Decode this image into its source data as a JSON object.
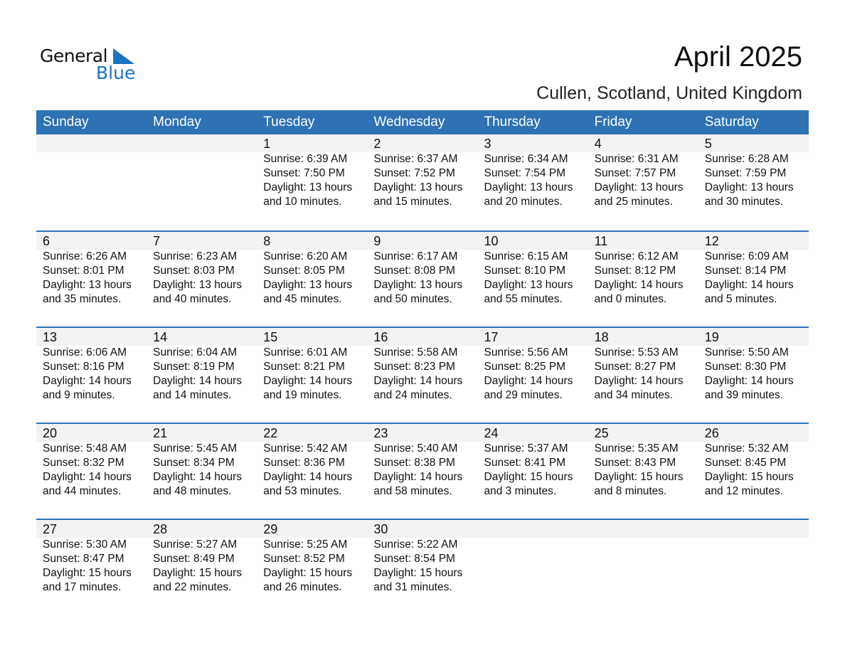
{
  "logo": {
    "word1": "General",
    "word2": "Blue"
  },
  "header": {
    "title": "April 2025",
    "subtitle": "Cullen, Scotland, United Kingdom"
  },
  "colors": {
    "accent": "#2e72b4",
    "logo_blue": "#1a73c1",
    "day_row": "#f2f2f2"
  },
  "weekdays": [
    "Sunday",
    "Monday",
    "Tuesday",
    "Wednesday",
    "Thursday",
    "Friday",
    "Saturday"
  ],
  "weeks": [
    [
      null,
      null,
      {
        "day": "1",
        "sunrise": "Sunrise: 6:39 AM",
        "sunset": "Sunset: 7:50 PM",
        "daylight1": "Daylight: 13 hours",
        "daylight2": "and 10 minutes."
      },
      {
        "day": "2",
        "sunrise": "Sunrise: 6:37 AM",
        "sunset": "Sunset: 7:52 PM",
        "daylight1": "Daylight: 13 hours",
        "daylight2": "and 15 minutes."
      },
      {
        "day": "3",
        "sunrise": "Sunrise: 6:34 AM",
        "sunset": "Sunset: 7:54 PM",
        "daylight1": "Daylight: 13 hours",
        "daylight2": "and 20 minutes."
      },
      {
        "day": "4",
        "sunrise": "Sunrise: 6:31 AM",
        "sunset": "Sunset: 7:57 PM",
        "daylight1": "Daylight: 13 hours",
        "daylight2": "and 25 minutes."
      },
      {
        "day": "5",
        "sunrise": "Sunrise: 6:28 AM",
        "sunset": "Sunset: 7:59 PM",
        "daylight1": "Daylight: 13 hours",
        "daylight2": "and 30 minutes."
      }
    ],
    [
      {
        "day": "6",
        "sunrise": "Sunrise: 6:26 AM",
        "sunset": "Sunset: 8:01 PM",
        "daylight1": "Daylight: 13 hours",
        "daylight2": "and 35 minutes."
      },
      {
        "day": "7",
        "sunrise": "Sunrise: 6:23 AM",
        "sunset": "Sunset: 8:03 PM",
        "daylight1": "Daylight: 13 hours",
        "daylight2": "and 40 minutes."
      },
      {
        "day": "8",
        "sunrise": "Sunrise: 6:20 AM",
        "sunset": "Sunset: 8:05 PM",
        "daylight1": "Daylight: 13 hours",
        "daylight2": "and 45 minutes."
      },
      {
        "day": "9",
        "sunrise": "Sunrise: 6:17 AM",
        "sunset": "Sunset: 8:08 PM",
        "daylight1": "Daylight: 13 hours",
        "daylight2": "and 50 minutes."
      },
      {
        "day": "10",
        "sunrise": "Sunrise: 6:15 AM",
        "sunset": "Sunset: 8:10 PM",
        "daylight1": "Daylight: 13 hours",
        "daylight2": "and 55 minutes."
      },
      {
        "day": "11",
        "sunrise": "Sunrise: 6:12 AM",
        "sunset": "Sunset: 8:12 PM",
        "daylight1": "Daylight: 14 hours",
        "daylight2": "and 0 minutes."
      },
      {
        "day": "12",
        "sunrise": "Sunrise: 6:09 AM",
        "sunset": "Sunset: 8:14 PM",
        "daylight1": "Daylight: 14 hours",
        "daylight2": "and 5 minutes."
      }
    ],
    [
      {
        "day": "13",
        "sunrise": "Sunrise: 6:06 AM",
        "sunset": "Sunset: 8:16 PM",
        "daylight1": "Daylight: 14 hours",
        "daylight2": "and 9 minutes."
      },
      {
        "day": "14",
        "sunrise": "Sunrise: 6:04 AM",
        "sunset": "Sunset: 8:19 PM",
        "daylight1": "Daylight: 14 hours",
        "daylight2": "and 14 minutes."
      },
      {
        "day": "15",
        "sunrise": "Sunrise: 6:01 AM",
        "sunset": "Sunset: 8:21 PM",
        "daylight1": "Daylight: 14 hours",
        "daylight2": "and 19 minutes."
      },
      {
        "day": "16",
        "sunrise": "Sunrise: 5:58 AM",
        "sunset": "Sunset: 8:23 PM",
        "daylight1": "Daylight: 14 hours",
        "daylight2": "and 24 minutes."
      },
      {
        "day": "17",
        "sunrise": "Sunrise: 5:56 AM",
        "sunset": "Sunset: 8:25 PM",
        "daylight1": "Daylight: 14 hours",
        "daylight2": "and 29 minutes."
      },
      {
        "day": "18",
        "sunrise": "Sunrise: 5:53 AM",
        "sunset": "Sunset: 8:27 PM",
        "daylight1": "Daylight: 14 hours",
        "daylight2": "and 34 minutes."
      },
      {
        "day": "19",
        "sunrise": "Sunrise: 5:50 AM",
        "sunset": "Sunset: 8:30 PM",
        "daylight1": "Daylight: 14 hours",
        "daylight2": "and 39 minutes."
      }
    ],
    [
      {
        "day": "20",
        "sunrise": "Sunrise: 5:48 AM",
        "sunset": "Sunset: 8:32 PM",
        "daylight1": "Daylight: 14 hours",
        "daylight2": "and 44 minutes."
      },
      {
        "day": "21",
        "sunrise": "Sunrise: 5:45 AM",
        "sunset": "Sunset: 8:34 PM",
        "daylight1": "Daylight: 14 hours",
        "daylight2": "and 48 minutes."
      },
      {
        "day": "22",
        "sunrise": "Sunrise: 5:42 AM",
        "sunset": "Sunset: 8:36 PM",
        "daylight1": "Daylight: 14 hours",
        "daylight2": "and 53 minutes."
      },
      {
        "day": "23",
        "sunrise": "Sunrise: 5:40 AM",
        "sunset": "Sunset: 8:38 PM",
        "daylight1": "Daylight: 14 hours",
        "daylight2": "and 58 minutes."
      },
      {
        "day": "24",
        "sunrise": "Sunrise: 5:37 AM",
        "sunset": "Sunset: 8:41 PM",
        "daylight1": "Daylight: 15 hours",
        "daylight2": "and 3 minutes."
      },
      {
        "day": "25",
        "sunrise": "Sunrise: 5:35 AM",
        "sunset": "Sunset: 8:43 PM",
        "daylight1": "Daylight: 15 hours",
        "daylight2": "and 8 minutes."
      },
      {
        "day": "26",
        "sunrise": "Sunrise: 5:32 AM",
        "sunset": "Sunset: 8:45 PM",
        "daylight1": "Daylight: 15 hours",
        "daylight2": "and 12 minutes."
      }
    ],
    [
      {
        "day": "27",
        "sunrise": "Sunrise: 5:30 AM",
        "sunset": "Sunset: 8:47 PM",
        "daylight1": "Daylight: 15 hours",
        "daylight2": "and 17 minutes."
      },
      {
        "day": "28",
        "sunrise": "Sunrise: 5:27 AM",
        "sunset": "Sunset: 8:49 PM",
        "daylight1": "Daylight: 15 hours",
        "daylight2": "and 22 minutes."
      },
      {
        "day": "29",
        "sunrise": "Sunrise: 5:25 AM",
        "sunset": "Sunset: 8:52 PM",
        "daylight1": "Daylight: 15 hours",
        "daylight2": "and 26 minutes."
      },
      {
        "day": "30",
        "sunrise": "Sunrise: 5:22 AM",
        "sunset": "Sunset: 8:54 PM",
        "daylight1": "Daylight: 15 hours",
        "daylight2": "and 31 minutes."
      },
      null,
      null,
      null
    ]
  ]
}
